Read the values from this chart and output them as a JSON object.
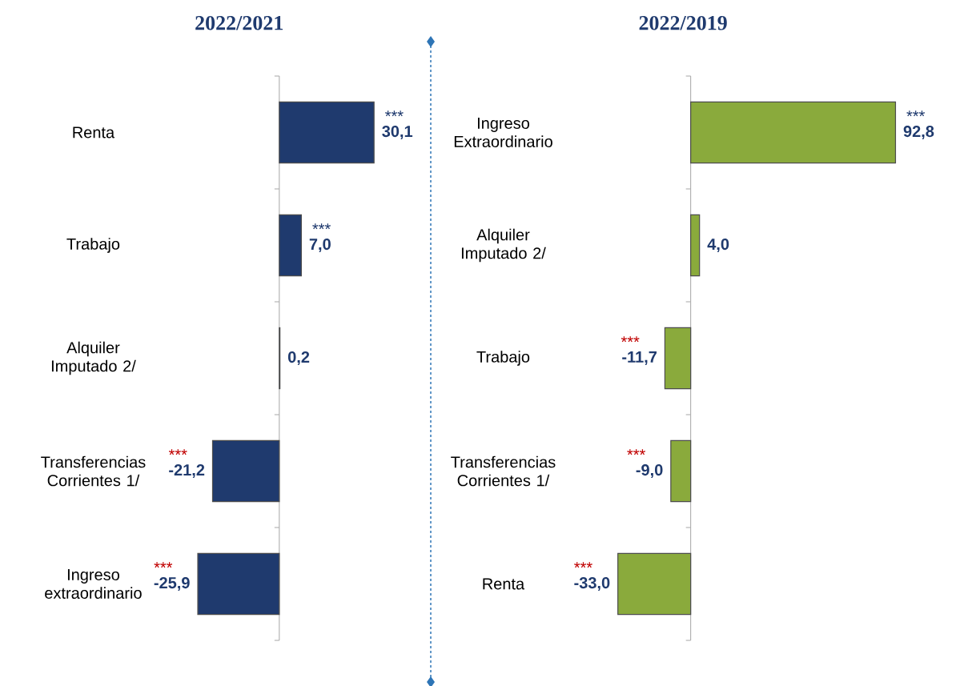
{
  "chart_data": [
    {
      "type": "bar",
      "orientation": "horizontal",
      "title": "2022/2021",
      "categories": [
        "Renta",
        "Trabajo",
        "Alquiler Imputado 2/",
        "Transferencias Corrientes 1/",
        "Ingreso extraordinario"
      ],
      "values": [
        30.1,
        7.0,
        0.2,
        -21.2,
        -25.9
      ],
      "color": "#1f3a6e",
      "value_labels": [
        "30,1",
        "7,0",
        "0,2",
        "-21,2",
        "-25,9"
      ],
      "annotations": [
        {
          "text": "***",
          "x": 30.1,
          "y": "Renta"
        },
        {
          "text": "***",
          "x": 7.0,
          "y": "Trabajo"
        },
        {
          "text": "***",
          "x": -21.2,
          "y": "Transferencias Corrientes 1/"
        },
        {
          "text": "***",
          "x": -25.9,
          "y": "Ingreso extraordinario"
        }
      ]
    },
    {
      "type": "bar",
      "orientation": "horizontal",
      "title": "2022/2019",
      "categories": [
        "Ingreso Extraordinario",
        "Alquiler Imputado 2/",
        "Trabajo",
        "Transferencias Corrientes 1/",
        "Renta"
      ],
      "values": [
        92.8,
        4.0,
        -11.7,
        -9.0,
        -33.0
      ],
      "color": "#8aaa3c",
      "value_labels": [
        "92,8",
        "4,0",
        "-11,7",
        "-9,0",
        "-33,0"
      ],
      "annotations": [
        {
          "text": "***",
          "x": 92.8,
          "y": "Ingreso Extraordinario"
        },
        {
          "text": "***",
          "x": -11.7,
          "y": "Trabajo"
        },
        {
          "text": "***",
          "x": -9.0,
          "y": "Transferencias Corrientes 1/"
        },
        {
          "text": "***",
          "x": -33.0,
          "y": "Renta"
        }
      ]
    }
  ]
}
